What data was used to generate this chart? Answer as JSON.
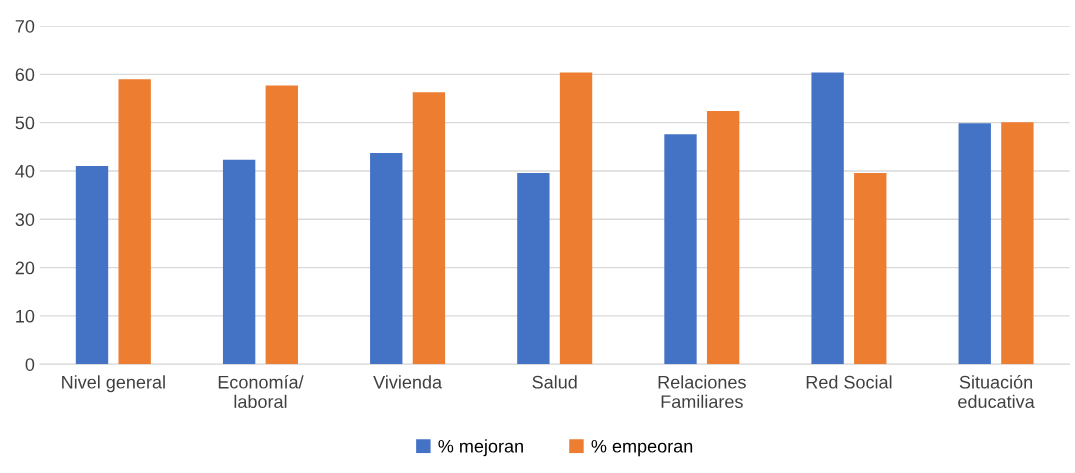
{
  "chart_data": {
    "type": "bar",
    "categories": [
      "Nivel general",
      "Economía/\nlaboral",
      "Vivienda",
      "Salud",
      "Relaciones\nFamiliares",
      "Red Social",
      "Situación\neducativa"
    ],
    "series": [
      {
        "name": "% mejoran",
        "color": "#4472c4",
        "values": [
          41.0,
          42.3,
          43.7,
          39.6,
          47.6,
          60.4,
          49.9
        ]
      },
      {
        "name": "% empeoran",
        "color": "#ed7d31",
        "values": [
          59.0,
          57.7,
          56.3,
          60.4,
          52.4,
          39.6,
          50.1
        ]
      }
    ],
    "ylim": [
      0,
      70
    ],
    "yticks": [
      0,
      10,
      20,
      30,
      40,
      50,
      60,
      70
    ],
    "grid": "y",
    "legend": "bottom"
  }
}
